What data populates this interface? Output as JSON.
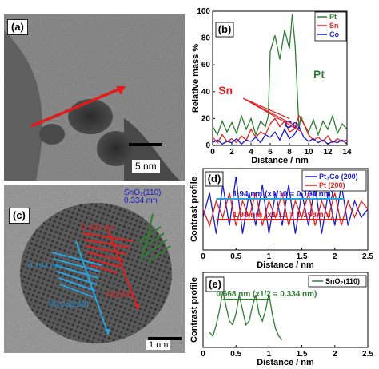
{
  "figure": {
    "panel_a": {
      "label": "(a)",
      "scalebar": "5 nm"
    },
    "panel_b": {
      "label": "(b)"
    },
    "panel_c": {
      "label": "(c)",
      "scalebar": "1 nm",
      "ann_sno2": "SnO₂(110)",
      "ann_sno2_d": "0.334 nm",
      "ann_pt_d": "0.198 nm",
      "ann_pt": "Pt(200)",
      "ann_ptco_d": "0.194 nm",
      "ann_ptco": "Pt₃Co(200)"
    },
    "panel_d": {
      "label": "(d)",
      "ann1": "1.94 nm (x1/10 = 0.194 nm)",
      "ann2": "1.98 nm (x1/10 = 0.198 nm)"
    },
    "panel_e": {
      "label": "(e)",
      "ann": "0.668 nm (x1/2 = 0.334 nm)"
    }
  },
  "colors": {
    "pt": "#2e7d32",
    "sn": "#e02020",
    "co": "#1a1acc",
    "sno2": "#2e7d32"
  },
  "chart_data": [
    {
      "type": "line",
      "panel": "b",
      "xlabel": "Distance / nm",
      "ylabel": "Relative mass %",
      "xlim": [
        0,
        14
      ],
      "ylim": [
        0,
        100
      ],
      "xticks": [
        "0",
        "2",
        "4",
        "6",
        "8",
        "10",
        "12",
        "14"
      ],
      "yticks": [
        "0",
        "20",
        "40",
        "60",
        "80",
        "100"
      ],
      "legend": [
        "Pt",
        "Sn",
        "Co"
      ],
      "legend_placement": "top-right",
      "annotations": [
        "Pt",
        "Sn",
        "Co"
      ],
      "series": [
        {
          "name": "Pt",
          "color": "#2e7d32",
          "x": [
            0,
            0.5,
            1,
            1.5,
            2,
            2.5,
            3,
            3.5,
            4,
            4.5,
            5,
            5.5,
            5.8,
            6,
            6.5,
            7,
            7.5,
            8,
            8.3,
            8.6,
            9,
            9.2,
            9.5,
            10,
            10.5,
            11,
            11.5,
            12,
            12.5,
            13,
            13.5,
            14
          ],
          "y": [
            14,
            8,
            18,
            10,
            17,
            9,
            22,
            12,
            20,
            8,
            18,
            14,
            22,
            70,
            82,
            64,
            86,
            72,
            98,
            74,
            12,
            22,
            16,
            10,
            19,
            8,
            18,
            12,
            22,
            9,
            16,
            12
          ]
        },
        {
          "name": "Sn",
          "color": "#e02020",
          "x": [
            0,
            0.5,
            1,
            1.5,
            2,
            2.5,
            3,
            3.5,
            4,
            4.5,
            5,
            5.5,
            6,
            6.5,
            7,
            7.5,
            8,
            8.5,
            9,
            9.5,
            10,
            10.5,
            11,
            11.5,
            12,
            12.5,
            13,
            13.5,
            14
          ],
          "y": [
            6,
            2,
            8,
            3,
            5,
            2,
            7,
            4,
            12,
            6,
            10,
            8,
            16,
            20,
            14,
            18,
            10,
            12,
            22,
            16,
            8,
            4,
            6,
            3,
            7,
            2,
            5,
            3,
            4
          ]
        },
        {
          "name": "Co",
          "color": "#1a1acc",
          "x": [
            0,
            0.5,
            1,
            1.5,
            2,
            2.5,
            3,
            3.5,
            4,
            4.5,
            5,
            5.5,
            6,
            6.5,
            7,
            7.5,
            8,
            8.5,
            9,
            9.5,
            10,
            10.5,
            11,
            11.5,
            12,
            12.5,
            13,
            13.5,
            14
          ],
          "y": [
            2,
            4,
            1,
            3,
            2,
            5,
            1,
            4,
            3,
            6,
            2,
            8,
            6,
            10,
            4,
            12,
            5,
            8,
            14,
            6,
            3,
            5,
            2,
            4,
            1,
            3,
            2,
            4,
            1
          ]
        }
      ]
    },
    {
      "type": "line",
      "panel": "d",
      "xlabel": "Distance / nm",
      "ylabel": "Contrast profile",
      "xlim": [
        0,
        2.5
      ],
      "xticks": [
        "0",
        "0.5",
        "1",
        "1.5",
        "2",
        "2.5"
      ],
      "legend": [
        "Pt₃Co (200)",
        "Pt (200)"
      ],
      "legend_placement": "top-right",
      "series": [
        {
          "name": "Pt₃Co (200)",
          "color": "#1a1acc",
          "x": [
            0,
            0.1,
            0.2,
            0.3,
            0.4,
            0.5,
            0.6,
            0.7,
            0.8,
            0.9,
            1.0,
            1.1,
            1.2,
            1.3,
            1.4,
            1.5,
            1.6,
            1.7,
            1.8,
            1.9,
            2.0,
            2.1,
            2.2,
            2.3,
            2.4,
            2.5
          ],
          "y": [
            0.4,
            0.7,
            0.2,
            0.8,
            0.3,
            0.9,
            0.2,
            0.7,
            0.3,
            0.8,
            0.2,
            0.7,
            0.3,
            0.8,
            0.2,
            0.7,
            0.3,
            0.8,
            0.2,
            0.7,
            0.3,
            0.8,
            0.3,
            0.6,
            0.4,
            0.5
          ]
        },
        {
          "name": "Pt (200)",
          "color": "#e02020",
          "x": [
            0,
            0.1,
            0.2,
            0.3,
            0.4,
            0.5,
            0.6,
            0.7,
            0.8,
            0.9,
            1.0,
            1.1,
            1.2,
            1.3,
            1.4,
            1.5,
            1.6,
            1.7,
            1.8,
            1.9,
            2.0,
            2.1,
            2.2,
            2.3,
            2.4,
            2.5
          ],
          "y": [
            0.5,
            0.3,
            0.6,
            0.4,
            0.7,
            0.3,
            0.6,
            0.4,
            0.7,
            0.3,
            0.6,
            0.4,
            0.7,
            0.3,
            0.6,
            0.4,
            0.7,
            0.3,
            0.6,
            0.4,
            0.7,
            0.3,
            0.6,
            0.4,
            0.6,
            0.5
          ]
        }
      ]
    },
    {
      "type": "line",
      "panel": "e",
      "xlabel": "Distance / nm",
      "ylabel": "Contrast profile",
      "xlim": [
        0,
        2.5
      ],
      "xticks": [
        "0",
        "0.5",
        "1",
        "1.5",
        "2",
        "2.5"
      ],
      "legend": [
        "SnO₂(110)"
      ],
      "legend_placement": "top-right",
      "series": [
        {
          "name": "SnO₂(110)",
          "color": "#2e7d32",
          "x": [
            0.1,
            0.15,
            0.2,
            0.25,
            0.3,
            0.35,
            0.4,
            0.45,
            0.5,
            0.55,
            0.6,
            0.65,
            0.7,
            0.75,
            0.8,
            0.85,
            0.9,
            0.95,
            1.0,
            1.05,
            1.1,
            1.15,
            1.2
          ],
          "y": [
            0.2,
            0.15,
            0.3,
            0.5,
            0.75,
            0.55,
            0.35,
            0.3,
            0.45,
            0.7,
            0.5,
            0.3,
            0.35,
            0.55,
            0.7,
            0.45,
            0.35,
            0.5,
            0.72,
            0.45,
            0.25,
            0.15,
            0.1
          ]
        }
      ]
    }
  ]
}
